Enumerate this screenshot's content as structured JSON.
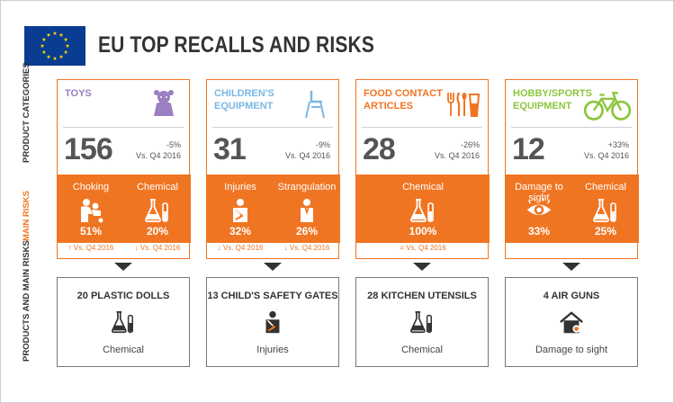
{
  "page": {
    "title": "EU TOP RECALLS AND RISKS"
  },
  "labels": {
    "product_categories": "PRODUCT CATEGORIES",
    "main_risks": "MAIN RISKS",
    "products_and_main_risks": "PRODUCTS AND MAIN RISKS"
  },
  "colors": {
    "accent": "#f07522",
    "toys": "#9b7fc0",
    "childrens": "#7ab8e4",
    "food": "#f07522",
    "hobby": "#8cc63e",
    "dark": "#333333"
  },
  "categories": [
    {
      "name": "TOYS",
      "color": "toys",
      "icon": "doll-icon",
      "count": "156",
      "change": "-5%",
      "change_ref": "Vs. Q4 2016",
      "risks": [
        {
          "name": "Choking",
          "percent": "51%",
          "icon": "choking-icon",
          "trend": "Vs. Q4 2016",
          "trend_dir": "up"
        },
        {
          "name": "Chemical",
          "percent": "20%",
          "icon": "chemical-icon",
          "trend": "Vs. Q4 2016",
          "trend_dir": "down"
        }
      ],
      "product": {
        "name": "20 PLASTIC DOLLS",
        "risk": "Chemical",
        "icon": "chemical-icon"
      }
    },
    {
      "name": "CHILDREN'S EQUIPMENT",
      "color": "childrens",
      "icon": "high-chair-icon",
      "count": "31",
      "change": "-9%",
      "change_ref": "Vs. Q4 2016",
      "risks": [
        {
          "name": "Injuries",
          "percent": "32%",
          "icon": "injury-icon",
          "trend": "Vs. Q4 2016",
          "trend_dir": "down"
        },
        {
          "name": "Strangulation",
          "percent": "26%",
          "icon": "strangulation-icon",
          "trend": "Vs. Q4 2016",
          "trend_dir": "down"
        }
      ],
      "product": {
        "name": "13 CHILD'S SAFETY GATES",
        "risk": "Injuries",
        "icon": "injury-icon"
      }
    },
    {
      "name": "FOOD CONTACT ARTICLES",
      "color": "food",
      "icon": "utensils-icon",
      "count": "28",
      "change": "-26%",
      "change_ref": "Vs. Q4 2016",
      "risks": [
        {
          "name": "Chemical",
          "percent": "100%",
          "icon": "chemical-icon",
          "trend": "Vs. Q4 2016",
          "trend_dir": "equal"
        }
      ],
      "product": {
        "name": "28 KITCHEN UTENSILS",
        "risk": "Chemical",
        "icon": "chemical-icon"
      }
    },
    {
      "name": "HOBBY/SPORTS EQUIPMENT",
      "color": "hobby",
      "icon": "bicycle-icon",
      "count": "12",
      "change": "+33%",
      "change_ref": "Vs. Q4 2016",
      "risks": [
        {
          "name": "Damage to sight",
          "percent": "33%",
          "icon": "eye-icon",
          "trend": "",
          "trend_dir": ""
        },
        {
          "name": "Chemical",
          "percent": "25%",
          "icon": "chemical-icon",
          "trend": "",
          "trend_dir": ""
        }
      ],
      "product": {
        "name": "4 AIR GUNS",
        "risk": "Damage to sight",
        "icon": "house-damage-icon"
      }
    }
  ]
}
